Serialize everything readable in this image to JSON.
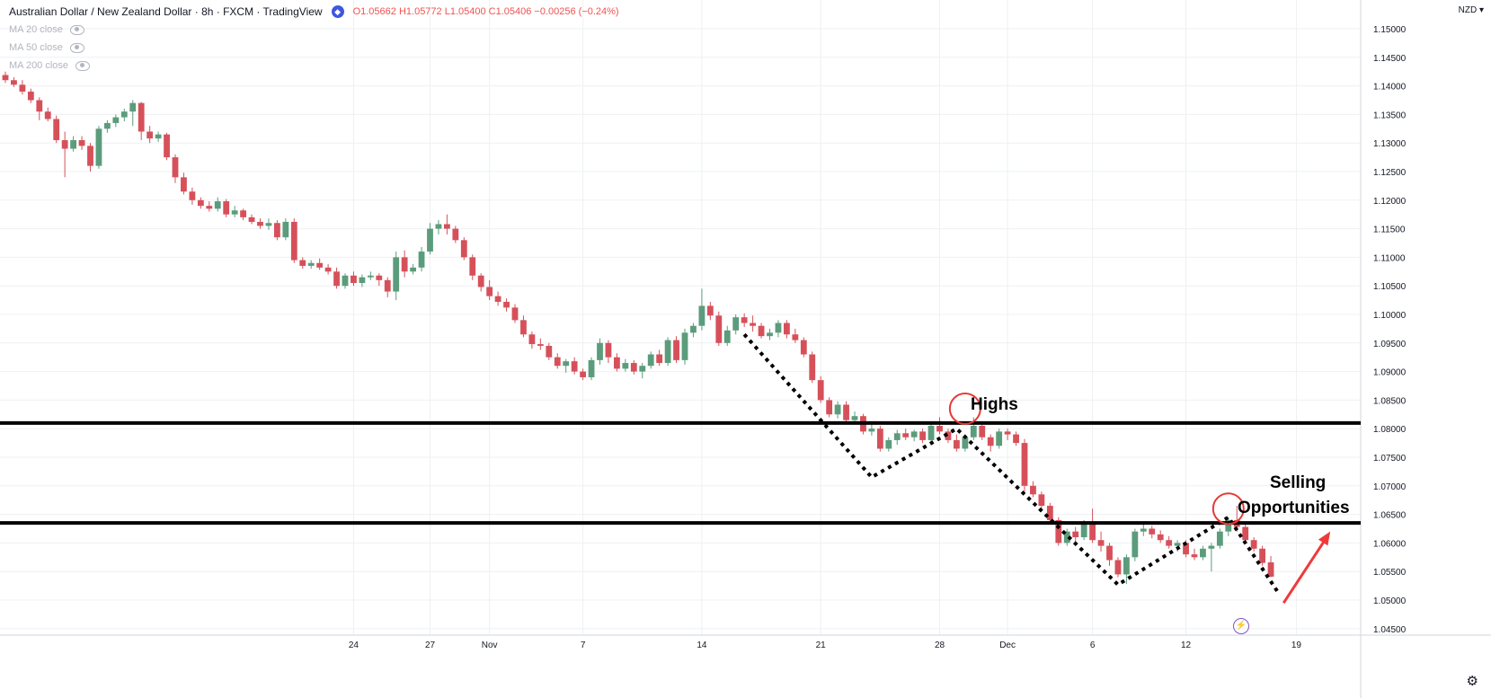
{
  "window": {
    "title": "Australian Dollar / New Zealand Dollar · 8h · FXCM · TradingView",
    "currency_label": "NZD ▾"
  },
  "legend": {
    "ohlc": "O1.05662 H1.05772 L1.05400 C1.05406 −0.00256 (−0.24%)",
    "indicators": [
      "MA 20 close",
      "MA 50 close",
      "MA 200 close"
    ]
  },
  "annotations": {
    "highs_label": "Highs",
    "selling_label_1": "Selling",
    "selling_label_2": "Opportunities"
  },
  "colors": {
    "up": "#5b9c7c",
    "down": "#d6505a",
    "grid": "#eef0f3",
    "axis_text": "#131722",
    "annotation_line": "#000000",
    "circle": "#e53935",
    "arrow": "#ef3a3a"
  },
  "icons": {
    "legend_badge": "tradingview-icon",
    "eye": "eye-icon",
    "settings": "gear-icon",
    "bolt": "lightning-icon"
  },
  "chart_data": {
    "type": "candlestick",
    "symbol": "AUDNZD",
    "timeframe": "8h",
    "price_axis": {
      "range": [
        1.045,
        1.155
      ],
      "ticks": [
        "1.15000",
        "1.14500",
        "1.14000",
        "1.13500",
        "1.13000",
        "1.12500",
        "1.12000",
        "1.11500",
        "1.11000",
        "1.10500",
        "1.10000",
        "1.09500",
        "1.09000",
        "1.08500",
        "1.08000",
        "1.07500",
        "1.07000",
        "1.06500",
        "1.06000",
        "1.05500",
        "1.05000",
        "1.04500"
      ]
    },
    "time_axis": {
      "labels": [
        {
          "label": "24",
          "bar": 41
        },
        {
          "label": "27",
          "bar": 50
        },
        {
          "label": "Nov",
          "bar": 57
        },
        {
          "label": "7",
          "bar": 68
        },
        {
          "label": "14",
          "bar": 82
        },
        {
          "label": "21",
          "bar": 96
        },
        {
          "label": "28",
          "bar": 110
        },
        {
          "label": "Dec",
          "bar": 118
        },
        {
          "label": "6",
          "bar": 128
        },
        {
          "label": "12",
          "bar": 139
        },
        {
          "label": "19",
          "bar": 152
        }
      ]
    },
    "horizontal_levels": [
      1.081,
      1.0635
    ],
    "zigzags": [
      [
        {
          "bar": 87,
          "price": 1.0965
        },
        {
          "bar": 102,
          "price": 1.0715
        },
        {
          "bar": 112,
          "price": 1.08
        },
        {
          "bar": 131,
          "price": 1.0527
        },
        {
          "bar": 144,
          "price": 1.0645
        },
        {
          "bar": 150,
          "price": 1.051
        }
      ]
    ],
    "circles": [
      {
        "bar": 113,
        "price": 1.0835
      },
      {
        "bar": 144,
        "price": 1.066
      }
    ],
    "arrow": {
      "from": {
        "bar": 150.5,
        "price": 1.0495
      },
      "to": {
        "bar": 156,
        "price": 1.062
      }
    },
    "candles": [
      [
        1.1419,
        1.1425,
        1.1405,
        1.141
      ],
      [
        1.141,
        1.1415,
        1.1398,
        1.1402
      ],
      [
        1.1402,
        1.141,
        1.1385,
        1.139
      ],
      [
        1.139,
        1.1395,
        1.137,
        1.1375
      ],
      [
        1.1375,
        1.138,
        1.134,
        1.1355
      ],
      [
        1.1355,
        1.1362,
        1.1338,
        1.1342
      ],
      [
        1.1342,
        1.1348,
        1.13,
        1.1305
      ],
      [
        1.1305,
        1.132,
        1.124,
        1.129
      ],
      [
        1.129,
        1.1312,
        1.1285,
        1.1305
      ],
      [
        1.1305,
        1.1312,
        1.1288,
        1.1295
      ],
      [
        1.1295,
        1.13,
        1.125,
        1.126
      ],
      [
        1.126,
        1.133,
        1.1255,
        1.1325
      ],
      [
        1.1325,
        1.134,
        1.1318,
        1.1335
      ],
      [
        1.1335,
        1.135,
        1.1328,
        1.1345
      ],
      [
        1.1345,
        1.136,
        1.1338,
        1.1355
      ],
      [
        1.1355,
        1.1375,
        1.133,
        1.137
      ],
      [
        1.137,
        1.1372,
        1.1305,
        1.132
      ],
      [
        1.132,
        1.133,
        1.13,
        1.1308
      ],
      [
        1.1308,
        1.132,
        1.1302,
        1.1315
      ],
      [
        1.1315,
        1.1318,
        1.127,
        1.1275
      ],
      [
        1.1275,
        1.128,
        1.123,
        1.124
      ],
      [
        1.124,
        1.1248,
        1.121,
        1.1215
      ],
      [
        1.1215,
        1.1222,
        1.1192,
        1.12
      ],
      [
        1.12,
        1.1205,
        1.1185,
        1.119
      ],
      [
        1.119,
        1.1198,
        1.118,
        1.1185
      ],
      [
        1.1185,
        1.1205,
        1.118,
        1.1198
      ],
      [
        1.1198,
        1.1202,
        1.117,
        1.1175
      ],
      [
        1.1175,
        1.119,
        1.117,
        1.1182
      ],
      [
        1.1182,
        1.1185,
        1.1165,
        1.117
      ],
      [
        1.117,
        1.1175,
        1.1158,
        1.1162
      ],
      [
        1.1162,
        1.1168,
        1.115,
        1.1155
      ],
      [
        1.1155,
        1.1168,
        1.1148,
        1.116
      ],
      [
        1.116,
        1.1165,
        1.113,
        1.1135
      ],
      [
        1.1135,
        1.1168,
        1.113,
        1.1162
      ],
      [
        1.1162,
        1.1168,
        1.109,
        1.1095
      ],
      [
        1.1095,
        1.11,
        1.108,
        1.1085
      ],
      [
        1.1085,
        1.1095,
        1.108,
        1.109
      ],
      [
        1.109,
        1.1098,
        1.1078,
        1.1082
      ],
      [
        1.1082,
        1.1088,
        1.107,
        1.1075
      ],
      [
        1.1075,
        1.1082,
        1.1045,
        1.105
      ],
      [
        1.105,
        1.1072,
        1.1045,
        1.1068
      ],
      [
        1.1068,
        1.1075,
        1.105,
        1.1055
      ],
      [
        1.1055,
        1.107,
        1.1048,
        1.1065
      ],
      [
        1.1065,
        1.1075,
        1.106,
        1.1068
      ],
      [
        1.1068,
        1.1072,
        1.105,
        1.106
      ],
      [
        1.106,
        1.1065,
        1.103,
        1.104
      ],
      [
        1.104,
        1.111,
        1.1025,
        1.11
      ],
      [
        1.11,
        1.1112,
        1.1065,
        1.1075
      ],
      [
        1.1075,
        1.1088,
        1.107,
        1.1082
      ],
      [
        1.1082,
        1.1118,
        1.1075,
        1.111
      ],
      [
        1.111,
        1.116,
        1.1105,
        1.115
      ],
      [
        1.115,
        1.1165,
        1.114,
        1.1158
      ],
      [
        1.1158,
        1.1175,
        1.114,
        1.115
      ],
      [
        1.115,
        1.1155,
        1.1125,
        1.113
      ],
      [
        1.113,
        1.1135,
        1.1095,
        1.11
      ],
      [
        1.11,
        1.1105,
        1.106,
        1.1068
      ],
      [
        1.1068,
        1.1072,
        1.104,
        1.1048
      ],
      [
        1.1048,
        1.106,
        1.1025,
        1.1032
      ],
      [
        1.1032,
        1.104,
        1.1015,
        1.1022
      ],
      [
        1.1022,
        1.1028,
        1.1005,
        1.1012
      ],
      [
        1.1012,
        1.1018,
        1.0985,
        1.099
      ],
      [
        1.099,
        1.0998,
        1.096,
        1.0965
      ],
      [
        1.0965,
        1.097,
        1.094,
        1.0948
      ],
      [
        1.0948,
        1.0958,
        1.0938,
        1.0945
      ],
      [
        1.0945,
        1.095,
        1.092,
        1.0925
      ],
      [
        1.0925,
        1.0932,
        1.0905,
        1.091
      ],
      [
        1.091,
        1.0922,
        1.0898,
        1.0918
      ],
      [
        1.0918,
        1.0925,
        1.0895,
        1.09
      ],
      [
        1.09,
        1.0905,
        1.0885,
        1.089
      ],
      [
        1.089,
        1.0925,
        1.0885,
        1.092
      ],
      [
        1.092,
        1.0958,
        1.0912,
        1.095
      ],
      [
        1.095,
        1.0955,
        1.0915,
        1.0925
      ],
      [
        1.0925,
        1.0932,
        1.09,
        1.0905
      ],
      [
        1.0905,
        1.0922,
        1.09,
        1.0915
      ],
      [
        1.0915,
        1.092,
        1.0895,
        1.09
      ],
      [
        1.09,
        1.0915,
        1.0888,
        1.091
      ],
      [
        1.091,
        1.0935,
        1.0905,
        1.093
      ],
      [
        1.093,
        1.0938,
        1.091,
        1.0915
      ],
      [
        1.0915,
        1.096,
        1.091,
        1.0955
      ],
      [
        1.0955,
        1.0962,
        1.0915,
        1.092
      ],
      [
        1.092,
        1.0975,
        1.0912,
        1.0968
      ],
      [
        1.0968,
        1.0985,
        1.096,
        1.098
      ],
      [
        1.098,
        1.1045,
        1.0972,
        1.1015
      ],
      [
        1.1015,
        1.1022,
        1.099,
        1.0998
      ],
      [
        1.0998,
        1.1005,
        1.0945,
        1.095
      ],
      [
        1.095,
        1.098,
        1.0945,
        1.0972
      ],
      [
        1.0972,
        1.1,
        1.0965,
        1.0995
      ],
      [
        1.0995,
        1.1002,
        1.0978,
        1.0985
      ],
      [
        1.0985,
        1.0998,
        1.097,
        1.098
      ],
      [
        1.098,
        1.0985,
        1.0958,
        1.0962
      ],
      [
        1.0962,
        1.0975,
        1.0955,
        1.0968
      ],
      [
        1.0968,
        1.099,
        1.096,
        1.0985
      ],
      [
        1.0985,
        1.099,
        1.0958,
        1.0965
      ],
      [
        1.0965,
        1.0975,
        1.095,
        1.0955
      ],
      [
        1.0955,
        1.096,
        1.0925,
        1.093
      ],
      [
        1.093,
        1.0935,
        1.088,
        1.0885
      ],
      [
        1.0885,
        1.0892,
        1.0845,
        1.085
      ],
      [
        1.085,
        1.0855,
        1.082,
        1.0825
      ],
      [
        1.0825,
        1.0848,
        1.0818,
        1.0842
      ],
      [
        1.0842,
        1.0848,
        1.081,
        1.0815
      ],
      [
        1.0815,
        1.083,
        1.0808,
        1.0822
      ],
      [
        1.0822,
        1.0826,
        1.079,
        1.0795
      ],
      [
        1.0795,
        1.081,
        1.0788,
        1.08
      ],
      [
        1.08,
        1.0805,
        1.076,
        1.0765
      ],
      [
        1.0765,
        1.0785,
        1.076,
        1.078
      ],
      [
        1.078,
        1.0798,
        1.0772,
        1.0792
      ],
      [
        1.0792,
        1.08,
        1.078,
        1.0785
      ],
      [
        1.0785,
        1.0798,
        1.0778,
        1.0795
      ],
      [
        1.0795,
        1.08,
        1.0775,
        1.078
      ],
      [
        1.078,
        1.0812,
        1.0776,
        1.0805
      ],
      [
        1.0805,
        1.082,
        1.079,
        1.0795
      ],
      [
        1.0795,
        1.08,
        1.0775,
        1.078
      ],
      [
        1.078,
        1.079,
        1.076,
        1.0765
      ],
      [
        1.0765,
        1.079,
        1.076,
        1.0785
      ],
      [
        1.0785,
        1.082,
        1.078,
        1.0805
      ],
      [
        1.0805,
        1.081,
        1.078,
        1.0785
      ],
      [
        1.0785,
        1.079,
        1.076,
        1.077
      ],
      [
        1.077,
        1.08,
        1.0765,
        1.0795
      ],
      [
        1.0795,
        1.08,
        1.078,
        1.079
      ],
      [
        1.079,
        1.0795,
        1.077,
        1.0775
      ],
      [
        1.0775,
        1.0782,
        1.069,
        1.07
      ],
      [
        1.07,
        1.0708,
        1.068,
        1.0685
      ],
      [
        1.0685,
        1.069,
        1.066,
        1.0665
      ],
      [
        1.0665,
        1.067,
        1.0635,
        1.064
      ],
      [
        1.064,
        1.0645,
        1.0595,
        1.06
      ],
      [
        1.06,
        1.0625,
        1.0595,
        1.062
      ],
      [
        1.062,
        1.0628,
        1.06,
        1.061
      ],
      [
        1.061,
        1.064,
        1.0605,
        1.0635
      ],
      [
        1.0635,
        1.066,
        1.06,
        1.0605
      ],
      [
        1.0605,
        1.062,
        1.0585,
        1.0595
      ],
      [
        1.0595,
        1.06,
        1.056,
        1.057
      ],
      [
        1.057,
        1.0575,
        1.054,
        1.0545
      ],
      [
        1.0545,
        1.058,
        1.0528,
        1.0575
      ],
      [
        1.0575,
        1.0625,
        1.0568,
        1.062
      ],
      [
        1.062,
        1.0632,
        1.0612,
        1.0625
      ],
      [
        1.0625,
        1.063,
        1.0608,
        1.0615
      ],
      [
        1.0615,
        1.0622,
        1.06,
        1.0605
      ],
      [
        1.0605,
        1.0612,
        1.059,
        1.0595
      ],
      [
        1.0595,
        1.0605,
        1.0585,
        1.06
      ],
      [
        1.06,
        1.0605,
        1.0575,
        1.058
      ],
      [
        1.058,
        1.059,
        1.057,
        1.0575
      ],
      [
        1.0575,
        1.0595,
        1.057,
        1.059
      ],
      [
        1.059,
        1.06,
        1.055,
        1.0595
      ],
      [
        1.0595,
        1.0625,
        1.059,
        1.062
      ],
      [
        1.062,
        1.0645,
        1.0612,
        1.064
      ],
      [
        1.064,
        1.0665,
        1.062,
        1.0628
      ],
      [
        1.0628,
        1.0632,
        1.06,
        1.0605
      ],
      [
        1.0605,
        1.061,
        1.0585,
        1.059
      ],
      [
        1.059,
        1.0595,
        1.056,
        1.0565
      ],
      [
        1.0566,
        1.0577,
        1.054,
        1.0541
      ]
    ]
  }
}
